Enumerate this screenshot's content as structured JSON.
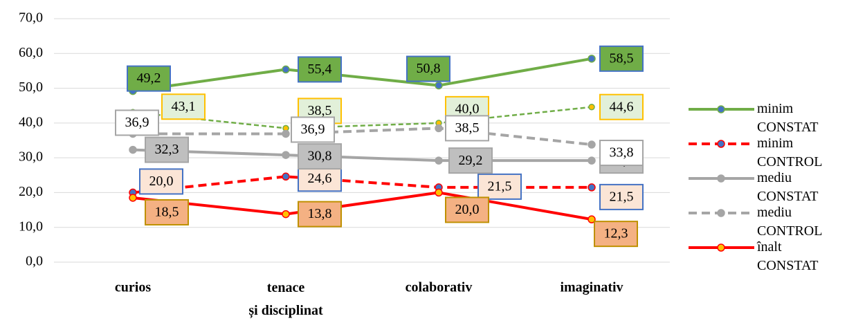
{
  "chart_data": {
    "type": "line",
    "categories": [
      "curios",
      "tenace și disciplinat",
      "colaborativ",
      "imaginativ"
    ],
    "series": [
      {
        "name": "minim CONSTAT",
        "color": "#70ad47",
        "dash": false,
        "values": [
          49.2,
          55.4,
          50.8,
          58.5
        ],
        "value_labels": [
          "49,2",
          "55,4",
          "50,8",
          "58,5"
        ]
      },
      {
        "color": "#70ad47",
        "dash": true,
        "values": [
          43.1,
          38.5,
          40.0,
          44.6
        ],
        "value_labels": [
          "43,1",
          "38,5",
          "40,0",
          "44,6"
        ]
      },
      {
        "name": "minim CONTROL",
        "color": "#ff0000",
        "dash": true,
        "values": [
          20.0,
          24.6,
          21.5,
          21.5
        ],
        "value_labels": [
          "20,0",
          "24,6",
          "21,5",
          "21,5"
        ]
      },
      {
        "name": "mediu CONSTAT",
        "color": "#a5a5a5",
        "dash": false,
        "values": [
          32.3,
          30.8,
          29.2,
          29.2
        ],
        "value_labels": [
          "32,3",
          "30,8",
          "29,2",
          "29,2"
        ]
      },
      {
        "name": "mediu CONTROL",
        "color": "#a5a5a5",
        "dash": true,
        "values": [
          36.9,
          36.9,
          38.5,
          33.8
        ],
        "value_labels": [
          "36,9",
          "36,9",
          "38,5",
          "33,8"
        ]
      },
      {
        "name": "înalt CONSTAT",
        "color": "#ff0000",
        "dash": false,
        "values": [
          18.5,
          13.8,
          20.0,
          12.3
        ],
        "value_labels": [
          "18,5",
          "13,8",
          "20,0",
          "12,3"
        ]
      }
    ],
    "ylim": [
      0,
      70
    ],
    "yticks": [
      {
        "value": 0,
        "label": "0,0"
      },
      {
        "value": 10,
        "label": "10,0"
      },
      {
        "value": 20,
        "label": "20,0"
      },
      {
        "value": 30,
        "label": "30,0"
      },
      {
        "value": 40,
        "label": "40,0"
      },
      {
        "value": 50,
        "label": "50,0"
      },
      {
        "value": 60,
        "label": "60,0"
      },
      {
        "value": 70,
        "label": "70,0"
      }
    ],
    "grid": true,
    "legend": "right"
  }
}
